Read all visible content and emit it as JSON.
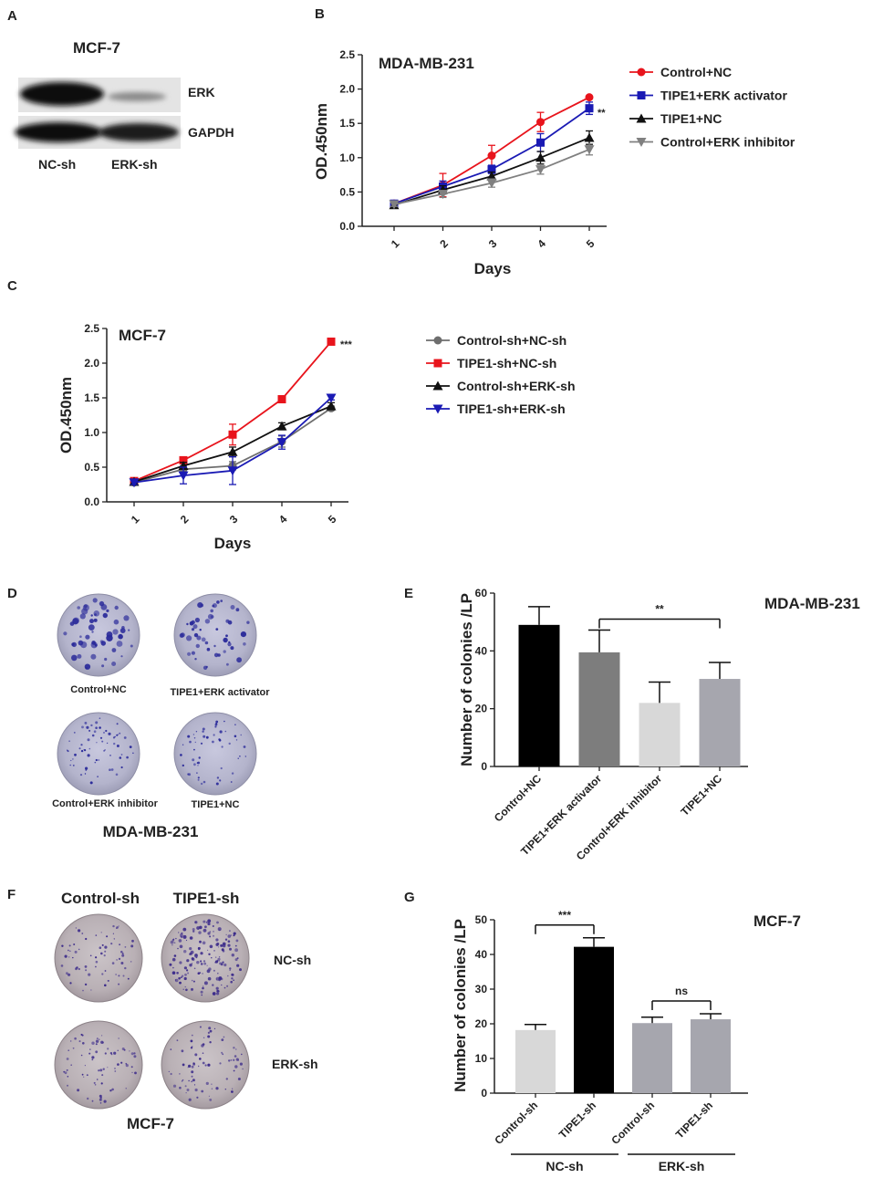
{
  "panels": {
    "a": "A",
    "b": "B",
    "c": "C",
    "d": "D",
    "e": "E",
    "f": "F",
    "g": "G"
  },
  "western_blot": {
    "title": "MCF-7",
    "bands": [
      "ERK",
      "GAPDH"
    ],
    "lanes": [
      "NC-sh",
      "ERK-sh"
    ]
  },
  "dish_d": {
    "labels": [
      "Control+NC",
      "TIPE1+ERK activator",
      "Control+ERK inhibitor",
      "TIPE1+NC"
    ],
    "caption": "MDA-MB-231"
  },
  "dish_f": {
    "cols": [
      "Control-sh",
      "TIPE1-sh"
    ],
    "rows": [
      "NC-sh",
      "ERK-sh"
    ],
    "caption": "MCF-7"
  },
  "chart_data": [
    {
      "id": "B",
      "type": "line",
      "title": "MDA-MB-231",
      "xlabel": "Days",
      "ylabel": "OD.450nm",
      "x": [
        1,
        2,
        3,
        4,
        5
      ],
      "ylim": [
        0,
        2.5
      ],
      "yticks": [
        0.0,
        0.5,
        1.0,
        1.5,
        2.0,
        2.5
      ],
      "yticklabels": [
        "0.0",
        "0.5",
        "1.0",
        "1.5",
        "2.0",
        "2.5"
      ],
      "series": [
        {
          "name": "Control+NC",
          "color": "#e8141c",
          "marker": "circle",
          "values": [
            0.33,
            0.6,
            1.03,
            1.52,
            1.88
          ],
          "err": [
            0.03,
            0.17,
            0.15,
            0.14,
            0.02
          ]
        },
        {
          "name": "TIPE1+ERK activator",
          "color": "#1a1ab4",
          "marker": "square",
          "values": [
            0.33,
            0.58,
            0.83,
            1.22,
            1.72
          ],
          "err": [
            0.03,
            0.08,
            0.06,
            0.13,
            0.09
          ]
        },
        {
          "name": "TIPE1+NC",
          "color": "#111111",
          "marker": "triangle-up",
          "values": [
            0.31,
            0.53,
            0.73,
            1.0,
            1.29
          ],
          "err": [
            0.03,
            0.06,
            0.06,
            0.09,
            0.1
          ]
        },
        {
          "name": "Control+ERK inhibitor",
          "color": "#808080",
          "marker": "triangle-down",
          "values": [
            0.32,
            0.47,
            0.63,
            0.83,
            1.12
          ],
          "err": [
            0.03,
            0.05,
            0.06,
            0.07,
            0.08
          ]
        }
      ],
      "annotation": "**"
    },
    {
      "id": "C",
      "type": "line",
      "title": "MCF-7",
      "xlabel": "Days",
      "ylabel": "OD.450nm",
      "x": [
        1,
        2,
        3,
        4,
        5
      ],
      "ylim": [
        0,
        2.5
      ],
      "yticks": [
        0.0,
        0.5,
        1.0,
        1.5,
        2.0,
        2.5
      ],
      "yticklabels": [
        "0.0",
        "0.5",
        "1.0",
        "1.5",
        "2.0",
        "2.5"
      ],
      "series": [
        {
          "name": "Control-sh+NC-sh",
          "color": "#6e6e6e",
          "marker": "circle",
          "values": [
            0.28,
            0.47,
            0.52,
            0.87,
            1.35
          ],
          "err": [
            0.03,
            0.05,
            0.06,
            0.08,
            0.03
          ]
        },
        {
          "name": "TIPE1-sh+NC-sh",
          "color": "#e8141c",
          "marker": "square",
          "values": [
            0.3,
            0.6,
            0.97,
            1.48,
            2.31
          ],
          "err": [
            0.03,
            0.04,
            0.15,
            0.02,
            0.02
          ]
        },
        {
          "name": "Control-sh+ERK-sh",
          "color": "#111111",
          "marker": "triangle-up",
          "values": [
            0.29,
            0.52,
            0.72,
            1.09,
            1.38
          ],
          "err": [
            0.03,
            0.05,
            0.07,
            0.05,
            0.05
          ]
        },
        {
          "name": "TIPE1-sh+ERK-sh",
          "color": "#1a1ab4",
          "marker": "triangle-down",
          "values": [
            0.28,
            0.38,
            0.45,
            0.86,
            1.5
          ],
          "err": [
            0.03,
            0.12,
            0.2,
            0.1,
            0.03
          ]
        }
      ],
      "annotation": "***"
    },
    {
      "id": "E",
      "type": "bar",
      "title": "MDA-MB-231",
      "ylabel": "Number of colonies /LP",
      "categories": [
        "Control+NC",
        "TIPE1+ERK activator",
        "Control+ERK inhibitor",
        "TIPE1+NC"
      ],
      "values": [
        49,
        39.5,
        22,
        30.3
      ],
      "err": [
        6.3,
        7.7,
        7.2,
        5.7
      ],
      "colors": [
        "#000000",
        "#7d7d7d",
        "#d8d8d8",
        "#a6a6ae"
      ],
      "ylim": [
        0,
        60
      ],
      "yticks": [
        0,
        20,
        40,
        60
      ],
      "yticklabels": [
        "0",
        "20",
        "40",
        "60"
      ],
      "significance": [
        {
          "from": 1,
          "to": 3,
          "label": "**"
        }
      ]
    },
    {
      "id": "G",
      "type": "bar",
      "title": "MCF-7",
      "ylabel": "Number of colonies /LP",
      "categories": [
        "Control-sh",
        "TIPE1-sh",
        "Control-sh",
        "TIPE1-sh"
      ],
      "values": [
        18.2,
        42.2,
        20.2,
        21.3
      ],
      "err": [
        1.6,
        2.6,
        1.7,
        1.6
      ],
      "colors": [
        "#d8d8d8",
        "#000000",
        "#a6a6ae",
        "#a6a6ae"
      ],
      "ylim": [
        0,
        50
      ],
      "yticks": [
        0,
        10,
        20,
        30,
        40,
        50
      ],
      "yticklabels": [
        "0",
        "10",
        "20",
        "30",
        "40",
        "50"
      ],
      "groups": [
        {
          "name": "NC-sh",
          "from": 0,
          "to": 1
        },
        {
          "name": "ERK-sh",
          "from": 2,
          "to": 3
        }
      ],
      "significance": [
        {
          "from": 0,
          "to": 1,
          "label": "***"
        },
        {
          "from": 2,
          "to": 3,
          "label": "ns"
        }
      ]
    }
  ]
}
